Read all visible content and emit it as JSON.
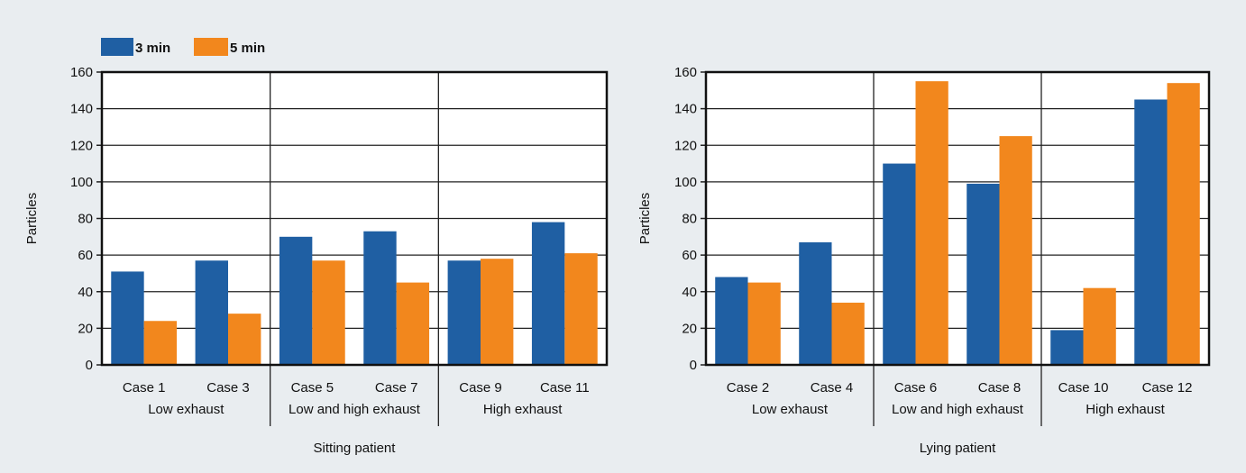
{
  "legend": [
    {
      "label": "3 min",
      "color": "#1f5fa3"
    },
    {
      "label": "5 min",
      "color": "#f2871d"
    }
  ],
  "chart_data": [
    {
      "type": "bar",
      "ylabel": "Particles",
      "xlabel": "Sitting patient",
      "ylim": [
        0,
        160
      ],
      "yticks": [
        0,
        20,
        40,
        60,
        80,
        100,
        120,
        140,
        160
      ],
      "grid": true,
      "categories": [
        "Case 1",
        "Case 3",
        "Case 5",
        "Case 7",
        "Case 9",
        "Case 11"
      ],
      "groups": [
        {
          "label": "Low exhaust",
          "categories": [
            "Case 1",
            "Case 3"
          ]
        },
        {
          "label": "Low and high exhaust",
          "categories": [
            "Case 5",
            "Case 7"
          ]
        },
        {
          "label": "High exhaust",
          "categories": [
            "Case 9",
            "Case 11"
          ]
        }
      ],
      "series": [
        {
          "name": "3 min",
          "values": [
            51,
            57,
            70,
            73,
            57,
            78
          ]
        },
        {
          "name": "5 min",
          "values": [
            24,
            28,
            57,
            45,
            58,
            61
          ]
        }
      ]
    },
    {
      "type": "bar",
      "ylabel": "Particles",
      "xlabel": "Lying patient",
      "ylim": [
        0,
        160
      ],
      "yticks": [
        0,
        20,
        40,
        60,
        80,
        100,
        120,
        140,
        160
      ],
      "grid": true,
      "categories": [
        "Case 2",
        "Case 4",
        "Case 6",
        "Case 8",
        "Case 10",
        "Case 12"
      ],
      "groups": [
        {
          "label": "Low exhaust",
          "categories": [
            "Case 2",
            "Case 4"
          ]
        },
        {
          "label": "Low and high exhaust",
          "categories": [
            "Case 6",
            "Case 8"
          ]
        },
        {
          "label": "High exhaust",
          "categories": [
            "Case 10",
            "Case 12"
          ]
        }
      ],
      "series": [
        {
          "name": "3 min",
          "values": [
            48,
            67,
            110,
            99,
            19,
            145
          ]
        },
        {
          "name": "5 min",
          "values": [
            45,
            34,
            155,
            125,
            42,
            154
          ]
        }
      ]
    }
  ]
}
